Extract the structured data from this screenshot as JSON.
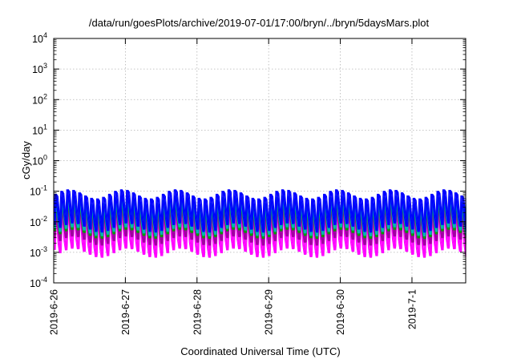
{
  "chart_data": {
    "type": "line",
    "title": "/data/run/goesPlots/archive/2019-07-01/17:00/bryn/../bryn/5daysMars.plot",
    "xlabel": "Coordinated Universal Time (UTC)",
    "ylabel": "cGy/day",
    "yscale": "log",
    "ylim": [
      0.0001,
      10000
    ],
    "xlim": [
      "2019-06-26 00:00",
      "2019-07-01 18:00"
    ],
    "grid": true,
    "legend": "none",
    "x_ticks": [
      "2019-6-26",
      "2019-6-27",
      "2019-6-28",
      "2019-6-29",
      "2019-6-30",
      "2019-7-1"
    ],
    "y_ticks": [
      {
        "base": "10",
        "exp": "4"
      },
      {
        "base": "10",
        "exp": "3"
      },
      {
        "base": "10",
        "exp": "2"
      },
      {
        "base": "10",
        "exp": "1"
      },
      {
        "base": "10",
        "exp": "0"
      },
      {
        "base": "10",
        "exp": "-1"
      },
      {
        "base": "10",
        "exp": "-2"
      },
      {
        "base": "10",
        "exp": "-3"
      },
      {
        "base": "10",
        "exp": "-4"
      }
    ],
    "pattern": {
      "cycles_per_day": 12,
      "cycles_per_modulation": 9,
      "modulation_amplitude_decades": 0.15
    },
    "series": [
      {
        "color": "#0000ff",
        "peak": 0.08,
        "trough": 0.008
      },
      {
        "color": "#00b4b4",
        "peak": 0.05,
        "trough": 0.006
      },
      {
        "color": "#00a000",
        "peak": 0.04,
        "trough": 0.005
      },
      {
        "color": "#a000a0",
        "peak": 0.025,
        "trough": 0.003
      },
      {
        "color": "#ff00ff",
        "peak": 0.02,
        "trough": 0.0012
      }
    ]
  }
}
